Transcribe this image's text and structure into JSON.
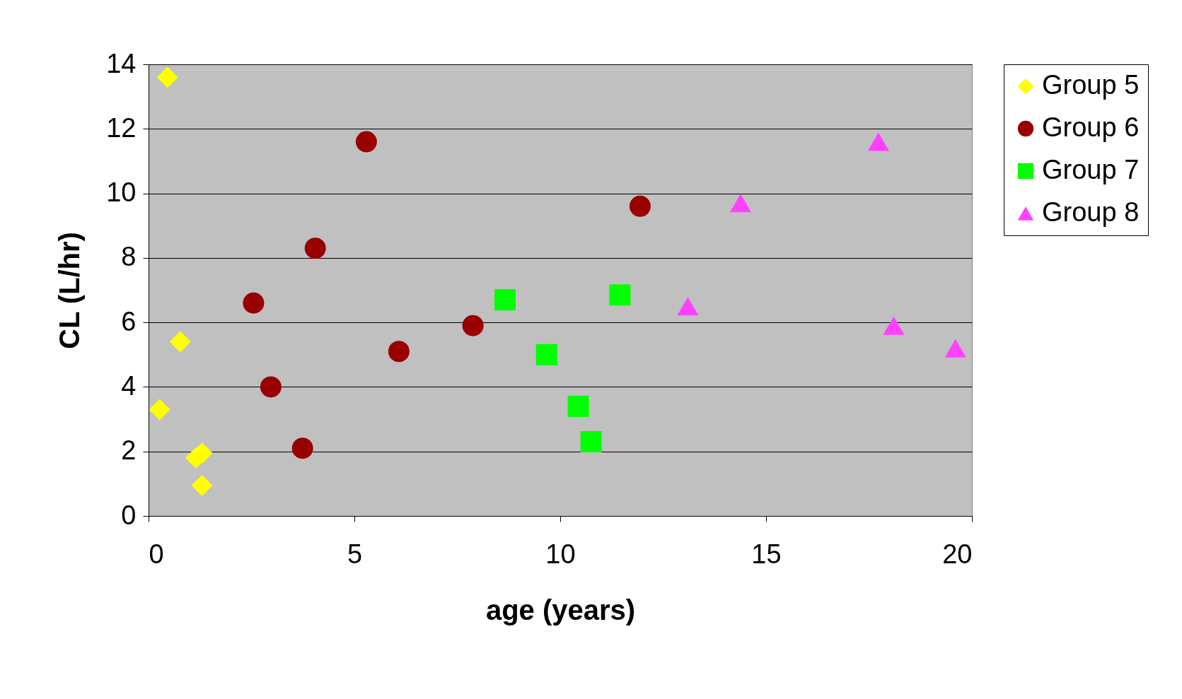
{
  "chart_data": {
    "type": "scatter",
    "xlabel": "age (years)",
    "ylabel": "CL (L/hr)",
    "xlim": [
      0,
      20
    ],
    "xticks": [
      0,
      5,
      10,
      15,
      20
    ],
    "ylim": [
      0,
      14
    ],
    "yticks": [
      0,
      2,
      4,
      6,
      8,
      10,
      12,
      14
    ],
    "grid": "y",
    "legend": "right",
    "series": [
      {
        "name": "Group 5",
        "color": "#ffff00",
        "marker": "diamond",
        "x": [
          0.46,
          0.77,
          0.27,
          1.15,
          1.3,
          1.3
        ],
        "values": [
          13.6,
          5.4,
          3.3,
          1.8,
          1.95,
          0.95
        ]
      },
      {
        "name": "Group 6",
        "color": "#990000",
        "marker": "circle",
        "x": [
          5.29,
          4.05,
          2.55,
          2.97,
          3.74,
          6.08,
          7.88,
          11.94
        ],
        "values": [
          11.6,
          8.3,
          6.6,
          4.0,
          2.1,
          5.1,
          5.9,
          9.6
        ]
      },
      {
        "name": "Group 7",
        "color": "#00ff00",
        "marker": "square",
        "x": [
          8.66,
          9.67,
          10.44,
          10.75,
          11.45
        ],
        "values": [
          6.7,
          5.0,
          3.4,
          2.3,
          6.85
        ]
      },
      {
        "name": "Group 8",
        "color": "#ff40ff",
        "marker": "triangle",
        "x": [
          17.73,
          14.38,
          13.1,
          18.1,
          19.6
        ],
        "values": [
          11.6,
          9.7,
          6.5,
          5.9,
          5.2
        ]
      }
    ]
  }
}
